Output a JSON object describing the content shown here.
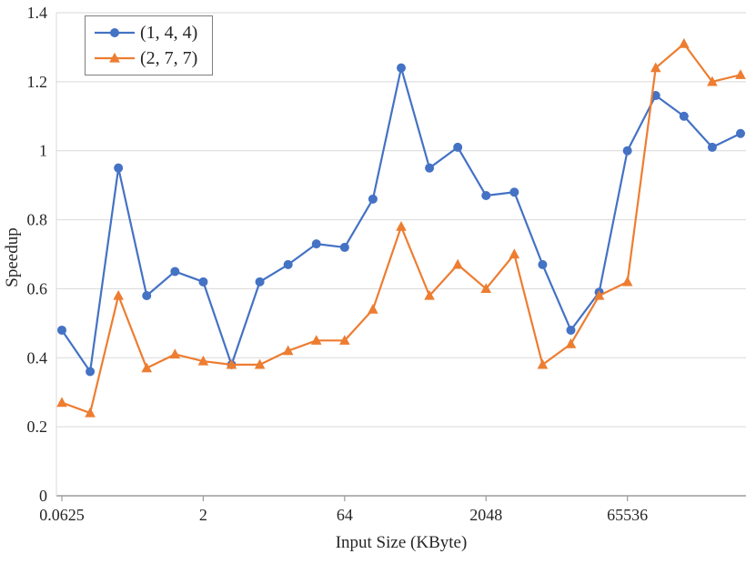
{
  "chart_data": {
    "type": "line",
    "title": "",
    "xlabel": "Input Size (KByte)",
    "ylabel": "Speedup",
    "x_scale": "log2",
    "num_points": 25,
    "x_tick_labels": [
      "0.0625",
      "2",
      "64",
      "2048",
      "65536"
    ],
    "x_tick_indices": [
      0,
      5,
      10,
      15,
      20
    ],
    "ylim": [
      0,
      1.4
    ],
    "yticks": [
      0,
      0.2,
      0.4,
      0.6,
      0.8,
      1,
      1.2,
      1.4
    ],
    "grid": "horizontal",
    "legend_position": "top-left",
    "series": [
      {
        "name": "(1, 4, 4)",
        "color": "#4472C4",
        "marker": "circle",
        "values": [
          0.48,
          0.36,
          0.95,
          0.58,
          0.65,
          0.62,
          0.38,
          0.62,
          0.67,
          0.73,
          0.72,
          0.86,
          1.24,
          0.95,
          1.01,
          0.87,
          0.88,
          0.67,
          0.48,
          0.59,
          1.0,
          1.16,
          1.1,
          1.01,
          1.05
        ]
      },
      {
        "name": "(2, 7, 7)",
        "color": "#ED7D31",
        "marker": "triangle",
        "values": [
          0.27,
          0.24,
          0.58,
          0.37,
          0.41,
          0.39,
          0.38,
          0.38,
          0.42,
          0.45,
          0.45,
          0.54,
          0.78,
          0.58,
          0.67,
          0.6,
          0.7,
          0.38,
          0.44,
          0.58,
          0.62,
          1.24,
          1.31,
          1.2,
          1.22
        ]
      }
    ],
    "colors": {
      "gridline": "#D9D9D9",
      "axis_line": "#9B9B9B",
      "tick_text": "#262626"
    }
  }
}
